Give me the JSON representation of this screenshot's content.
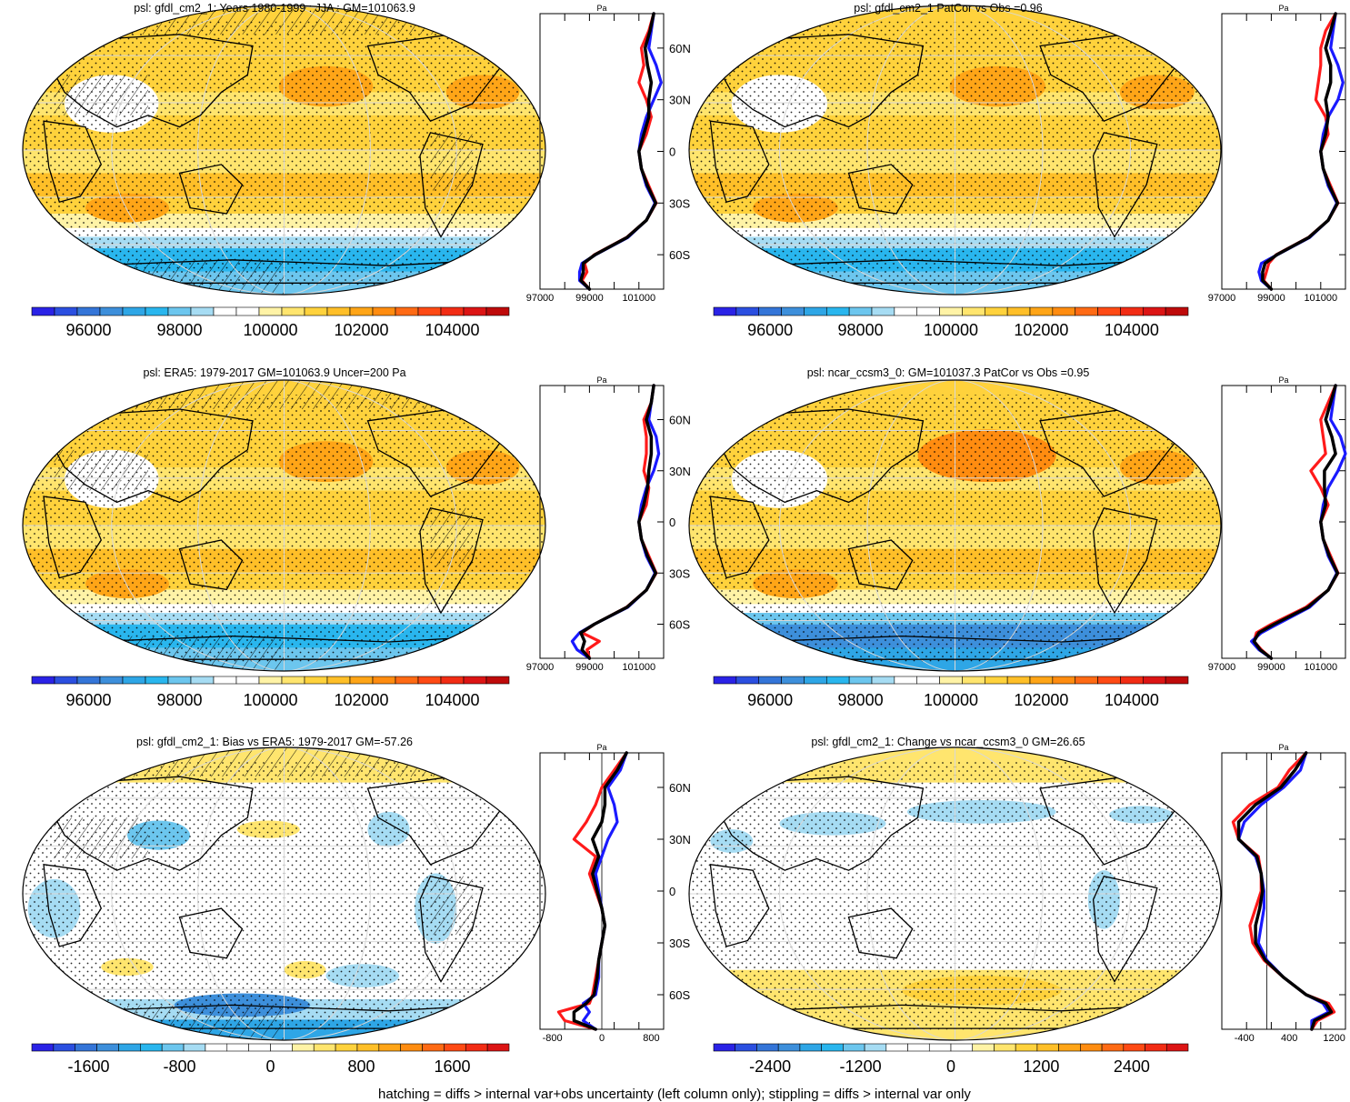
{
  "footer": "hatching = diffs > internal var+obs uncertainty (left column only); stippling = diffs > internal var only",
  "palette": {
    "abs": [
      "#2a22e6",
      "#2b4fe0",
      "#3475d8",
      "#3d8fdb",
      "#2ea6e6",
      "#29b6ee",
      "#6cc6ee",
      "#a6dcf3",
      "#ffffff",
      "#ffffff",
      "#fff3a6",
      "#ffe56e",
      "#ffd23c",
      "#ffbf28",
      "#ffa517",
      "#ff8c10",
      "#ff6a14",
      "#ff4a14",
      "#f22c14",
      "#dc1414",
      "#be0a0a"
    ],
    "land": "#000000",
    "grid": "#d8d8d8",
    "series_model": "#ff1a1a",
    "series_obs": "#1a1aff",
    "series_mean": "#000000"
  },
  "chart_data": [
    {
      "type": "heatmap",
      "id": "p1",
      "title": "psl: gfdl_cm2_1: Years 1980-1999 : JJA : GM=101063.9",
      "colorbar": {
        "ticks": [
          "96000",
          "98000",
          "100000",
          "102000",
          "104000"
        ],
        "tick_values": [
          96000,
          98000,
          100000,
          102000,
          104000
        ],
        "min": 94750,
        "max": 105250
      },
      "field": "abs",
      "hatch": true,
      "zonal_profile": {
        "axis_label": "Pa",
        "xticks": [
          "97000",
          "99000",
          "101000"
        ],
        "xtick_values": [
          97000,
          99000,
          101000
        ],
        "xlim": [
          97000,
          102000
        ],
        "yticks": [
          "60N",
          "30N",
          "0",
          "30S",
          "60S"
        ],
        "ytick_values": [
          60,
          30,
          0,
          -30,
          -60
        ],
        "ylim": [
          -80,
          80
        ],
        "lat": [
          80,
          70,
          60,
          50,
          40,
          30,
          20,
          10,
          0,
          -10,
          -20,
          -30,
          -40,
          -50,
          -60,
          -65,
          -70,
          -75,
          -80
        ],
        "series": [
          {
            "name": "model",
            "color": "#ff1a1a",
            "values": [
              101600,
              101400,
              101100,
              101200,
              101000,
              101300,
              101500,
              101300,
              101000,
              101100,
              101400,
              101700,
              101300,
              100500,
              99200,
              98800,
              98900,
              98700,
              99000
            ]
          },
          {
            "name": "obs",
            "color": "#1a1aff",
            "values": [
              101600,
              101500,
              101400,
              101700,
              101900,
              101600,
              101300,
              101100,
              101000,
              101100,
              101300,
              101650,
              101300,
              100550,
              99250,
              98700,
              98600,
              98600,
              99000
            ]
          },
          {
            "name": "mean",
            "color": "#000000",
            "values": [
              101600,
              101450,
              101250,
              101350,
              101500,
              101400,
              101400,
              101200,
              101000,
              101100,
              101350,
              101680,
              101300,
              100520,
              99230,
              98750,
              98750,
              98650,
              99000
            ]
          }
        ]
      }
    },
    {
      "type": "heatmap",
      "id": "p2",
      "title": "psl: gfdl_cm2_1 PatCor vs Obs =0.96",
      "colorbar": {
        "ticks": [
          "96000",
          "98000",
          "100000",
          "102000",
          "104000"
        ],
        "tick_values": [
          96000,
          98000,
          100000,
          102000,
          104000
        ],
        "min": 94750,
        "max": 105250
      },
      "field": "abs",
      "hatch": false,
      "zonal_profile": {
        "axis_label": "Pa",
        "xticks": [
          "97000",
          "99000",
          "101000"
        ],
        "xtick_values": [
          97000,
          99000,
          101000
        ],
        "xlim": [
          97000,
          102000
        ],
        "yticks": [
          "60N",
          "30N",
          "0",
          "30S",
          "60S"
        ],
        "ytick_values": [
          60,
          30,
          0,
          -30,
          -60
        ],
        "ylim": [
          -80,
          80
        ],
        "lat": [
          80,
          70,
          60,
          50,
          40,
          30,
          20,
          10,
          0,
          -10,
          -20,
          -30,
          -40,
          -50,
          -60,
          -65,
          -70,
          -75,
          -80
        ],
        "series": [
          {
            "name": "model",
            "color": "#ff1a1a",
            "values": [
              101600,
              101200,
              101000,
              101000,
              100900,
              100800,
              101200,
              101300,
              101000,
              101100,
              101400,
              101700,
              101300,
              100500,
              99200,
              98900,
              98800,
              98700,
              99000
            ]
          },
          {
            "name": "obs",
            "color": "#1a1aff",
            "values": [
              101600,
              101500,
              101400,
              101700,
              101900,
              101700,
              101300,
              101100,
              101000,
              101100,
              101300,
              101650,
              101300,
              100550,
              99250,
              98600,
              98500,
              98600,
              99000
            ]
          },
          {
            "name": "mean",
            "color": "#000000",
            "values": [
              101600,
              101400,
              101200,
              101400,
              101400,
              101200,
              101300,
              101200,
              101000,
              101100,
              101350,
              101680,
              101300,
              100520,
              99230,
              98750,
              98650,
              98650,
              99000
            ]
          }
        ]
      }
    },
    {
      "type": "heatmap",
      "id": "p3",
      "title": "psl: ERA5: 1979-2017 GM=101063.9 Uncer=200 Pa",
      "colorbar": {
        "ticks": [
          "96000",
          "98000",
          "100000",
          "102000",
          "104000"
        ],
        "tick_values": [
          96000,
          98000,
          100000,
          102000,
          104000
        ],
        "min": 94750,
        "max": 105250
      },
      "field": "abs",
      "hatch": true,
      "zonal_profile": {
        "axis_label": "Pa",
        "xticks": [
          "97000",
          "99000",
          "101000"
        ],
        "xtick_values": [
          97000,
          99000,
          101000
        ],
        "xlim": [
          97000,
          102000
        ],
        "yticks": [
          "60N",
          "30N",
          "0",
          "30S",
          "60S"
        ],
        "ytick_values": [
          60,
          30,
          0,
          -30,
          -60
        ],
        "ylim": [
          -80,
          80
        ],
        "lat": [
          80,
          70,
          60,
          50,
          40,
          30,
          20,
          10,
          0,
          -10,
          -20,
          -30,
          -40,
          -50,
          -60,
          -65,
          -70,
          -75,
          -80
        ],
        "series": [
          {
            "name": "model",
            "color": "#ff1a1a",
            "values": [
              101600,
              101500,
              101200,
              101300,
              101300,
              101200,
              101400,
              101300,
              101000,
              101100,
              101400,
              101700,
              101300,
              100500,
              99200,
              98700,
              99400,
              98900,
              99000
            ]
          },
          {
            "name": "obs",
            "color": "#1a1aff",
            "values": [
              101600,
              101500,
              101400,
              101700,
              101800,
              101600,
              101300,
              101100,
              101000,
              101100,
              101300,
              101650,
              101300,
              100550,
              99200,
              98600,
              98300,
              98500,
              99000
            ]
          },
          {
            "name": "mean",
            "color": "#000000",
            "values": [
              101600,
              101500,
              101300,
              101500,
              101500,
              101400,
              101350,
              101200,
              101000,
              101100,
              101350,
              101680,
              101300,
              100520,
              99200,
              98650,
              98800,
              98700,
              99000
            ]
          }
        ]
      }
    },
    {
      "type": "heatmap",
      "id": "p4",
      "title": "psl: ncar_ccsm3_0: GM=101037.3 PatCor vs Obs =0.95",
      "colorbar": {
        "ticks": [
          "96000",
          "98000",
          "100000",
          "102000",
          "104000"
        ],
        "tick_values": [
          96000,
          98000,
          100000,
          102000,
          104000
        ],
        "min": 94750,
        "max": 105250
      },
      "field": "abs",
      "hatch": false,
      "zonal_profile": {
        "axis_label": "Pa",
        "xticks": [
          "97000",
          "99000",
          "101000"
        ],
        "xtick_values": [
          97000,
          99000,
          101000
        ],
        "xlim": [
          97000,
          102000
        ],
        "yticks": [
          "60N",
          "30N",
          "0",
          "30S",
          "60S"
        ],
        "ytick_values": [
          60,
          30,
          0,
          -30,
          -60
        ],
        "ylim": [
          -80,
          80
        ],
        "lat": [
          80,
          70,
          60,
          50,
          40,
          30,
          20,
          10,
          0,
          -10,
          -20,
          -30,
          -40,
          -50,
          -60,
          -65,
          -70,
          -75,
          -80
        ],
        "series": [
          {
            "name": "model",
            "color": "#ff1a1a",
            "values": [
              101600,
              101300,
              101000,
              101100,
              101200,
              100600,
              101000,
              101300,
              101000,
              101100,
              101400,
              101700,
              101300,
              100400,
              99000,
              98400,
              98300,
              98600,
              99000
            ]
          },
          {
            "name": "obs",
            "color": "#1a1aff",
            "values": [
              101600,
              101500,
              101400,
              101800,
              102000,
              101700,
              101300,
              101100,
              101000,
              101100,
              101300,
              101650,
              101300,
              100550,
              99250,
              98600,
              98200,
              98500,
              99000
            ]
          },
          {
            "name": "mean",
            "color": "#000000",
            "values": [
              101600,
              101400,
              101200,
              101450,
              101600,
              101150,
              101150,
              101200,
              101000,
              101100,
              101350,
              101680,
              101300,
              100480,
              99120,
              98500,
              98300,
              98550,
              99000
            ]
          }
        ]
      }
    },
    {
      "type": "heatmap",
      "id": "p5",
      "title": "psl: gfdl_cm2_1: Bias vs ERA5: 1979-2017 GM=-57.26",
      "colorbar": {
        "ticks": [
          "-1600",
          "-800",
          "0",
          "800",
          "1600"
        ],
        "tick_values": [
          -1600,
          -800,
          0,
          800,
          1600
        ],
        "min": -2100,
        "max": 2100
      },
      "field": "diff",
      "hatch": true,
      "zonal_profile": {
        "axis_label": "Pa",
        "xticks": [
          "-800",
          "0",
          "800"
        ],
        "xtick_values": [
          -800,
          0,
          800
        ],
        "xlim": [
          -1000,
          1000
        ],
        "yticks": [
          "60N",
          "30N",
          "0",
          "30S",
          "60S"
        ],
        "ytick_values": [
          60,
          30,
          0,
          -30,
          -60
        ],
        "ylim": [
          -80,
          80
        ],
        "lat": [
          80,
          70,
          60,
          50,
          40,
          30,
          20,
          10,
          0,
          -10,
          -20,
          -30,
          -40,
          -50,
          -60,
          -65,
          -70,
          -75,
          -80
        ],
        "series": [
          {
            "name": "model",
            "color": "#ff1a1a",
            "values": [
              400,
              200,
              0,
              -100,
              -250,
              -450,
              -100,
              -200,
              -100,
              0,
              50,
              0,
              -50,
              -100,
              -150,
              -200,
              -700,
              -600,
              -100
            ]
          },
          {
            "name": "obs",
            "color": "#1a1aff",
            "values": [
              400,
              300,
              100,
              200,
              250,
              100,
              0,
              -100,
              -50,
              0,
              50,
              0,
              -50,
              -50,
              -100,
              -300,
              -200,
              -300,
              -100
            ]
          },
          {
            "name": "mean",
            "color": "#000000",
            "values": [
              400,
              250,
              50,
              50,
              0,
              -150,
              -50,
              -150,
              -75,
              0,
              50,
              0,
              -50,
              -75,
              -125,
              -250,
              -450,
              -450,
              -100
            ]
          }
        ]
      }
    },
    {
      "type": "heatmap",
      "id": "p6",
      "title": "psl: gfdl_cm2_1: Change vs ncar_ccsm3_0 GM=26.65",
      "colorbar": {
        "ticks": [
          "-2400",
          "-1200",
          "0",
          "1200",
          "2400"
        ],
        "tick_values": [
          -2400,
          -1200,
          0,
          1200,
          2400
        ],
        "min": -3150,
        "max": 3150
      },
      "field": "change",
      "hatch": false,
      "zonal_profile": {
        "axis_label": "Pa",
        "xticks": [
          "-400",
          "400",
          "1200"
        ],
        "xtick_values": [
          -400,
          400,
          1200
        ],
        "xlim": [
          -800,
          1400
        ],
        "yticks": [
          "60N",
          "30N",
          "0",
          "30S",
          "60S"
        ],
        "ytick_values": [
          60,
          30,
          0,
          -30,
          -60
        ],
        "ylim": [
          -80,
          80
        ],
        "lat": [
          80,
          70,
          60,
          50,
          40,
          30,
          20,
          10,
          0,
          -10,
          -20,
          -30,
          -40,
          -50,
          -60,
          -65,
          -70,
          -75,
          -80
        ],
        "series": [
          {
            "name": "model",
            "color": "#ff1a1a",
            "values": [
              700,
              400,
              200,
              -300,
              -600,
              -500,
              -150,
              -100,
              -100,
              -200,
              -300,
              -250,
              -50,
              300,
              700,
              1100,
              1200,
              900,
              800
            ]
          },
          {
            "name": "obs",
            "color": "#1a1aff",
            "values": [
              700,
              600,
              300,
              -100,
              -400,
              -500,
              -200,
              -100,
              -50,
              -50,
              -100,
              -150,
              0,
              300,
              700,
              1000,
              1100,
              800,
              800
            ]
          },
          {
            "name": "mean",
            "color": "#000000",
            "values": [
              700,
              500,
              250,
              -200,
              -500,
              -500,
              -175,
              -100,
              -75,
              -125,
              -200,
              -200,
              -25,
              300,
              700,
              1050,
              1150,
              850,
              800
            ]
          }
        ]
      }
    }
  ]
}
